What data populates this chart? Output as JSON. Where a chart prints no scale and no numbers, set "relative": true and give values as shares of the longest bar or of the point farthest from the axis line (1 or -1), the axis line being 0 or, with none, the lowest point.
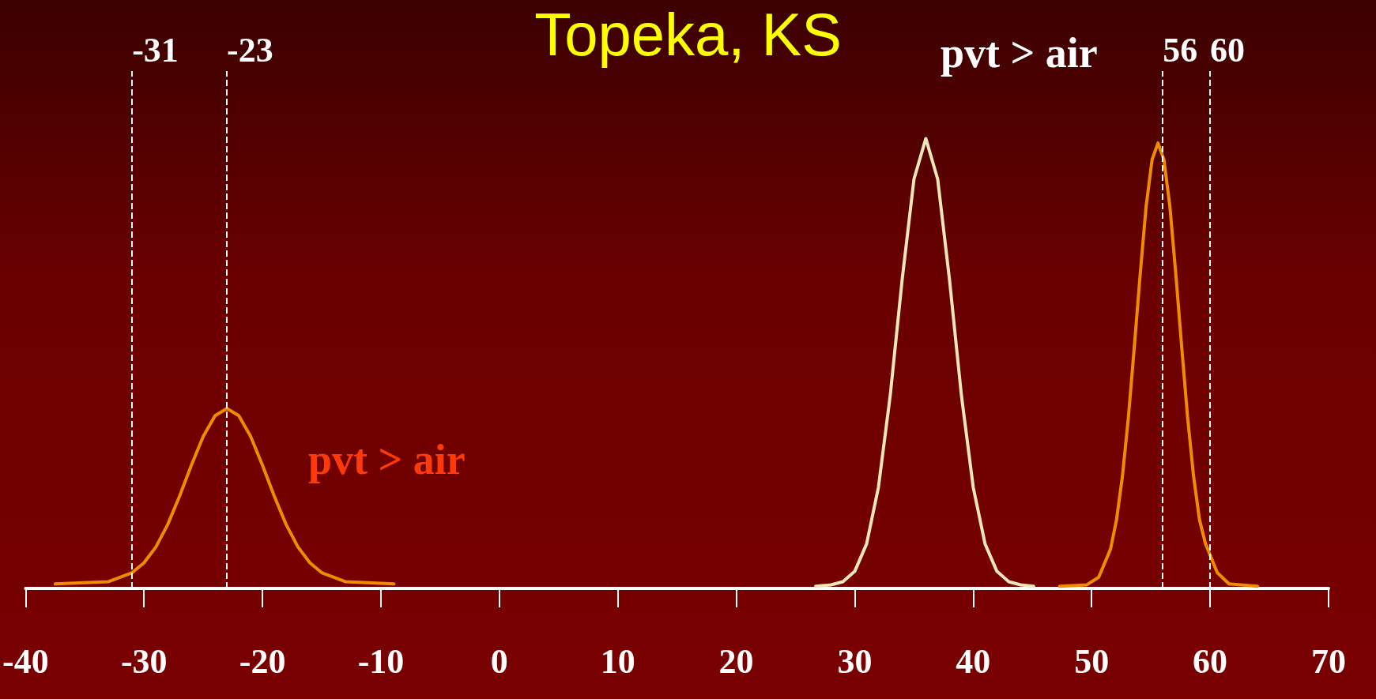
{
  "chart_data": {
    "type": "line",
    "title": "Topeka, KS",
    "relative": true,
    "marker": "none",
    "line_style": "solid",
    "grid": false,
    "xlim": [
      -40,
      70
    ],
    "xticks": [
      -40,
      -30,
      -20,
      -10,
      0,
      10,
      20,
      30,
      40,
      50,
      60,
      70
    ],
    "series": [
      {
        "color": "#f08c00",
        "x": [
          -37.5,
          -33,
          -31,
          -30,
          -29,
          -28,
          -27,
          -26,
          -25,
          -24,
          -23,
          -22,
          -21,
          -20,
          -19,
          -18,
          -17,
          -16,
          -15,
          -13,
          -8.9
        ],
        "values": [
          0.01,
          0.015,
          0.035,
          0.057,
          0.092,
          0.142,
          0.205,
          0.274,
          0.338,
          0.384,
          0.4,
          0.384,
          0.338,
          0.274,
          0.205,
          0.142,
          0.092,
          0.057,
          0.035,
          0.015,
          0.01
        ]
      },
      {
        "color": "#efe6b8",
        "x": [
          26.7,
          28,
          29,
          30,
          31,
          32,
          33,
          34,
          35,
          36,
          37,
          38,
          39,
          40,
          41,
          42,
          43,
          44,
          45.1
        ],
        "values": [
          0.005,
          0.008,
          0.015,
          0.038,
          0.099,
          0.225,
          0.43,
          0.686,
          0.91,
          1,
          0.91,
          0.686,
          0.43,
          0.225,
          0.099,
          0.038,
          0.015,
          0.008,
          0.005
        ]
      },
      {
        "color": "#f08c00",
        "x": [
          47.3,
          49.6,
          50.6,
          51.6,
          52.1,
          52.6,
          53.1,
          53.6,
          54.1,
          54.6,
          55.1,
          55.6,
          56.1,
          56.6,
          57.1,
          57.6,
          58.1,
          58.6,
          59.1,
          59.6,
          60.6,
          61.6,
          64
        ],
        "values": [
          0.005,
          0.008,
          0.025,
          0.088,
          0.153,
          0.25,
          0.38,
          0.537,
          0.7,
          0.85,
          0.953,
          0.99,
          0.953,
          0.85,
          0.7,
          0.537,
          0.38,
          0.25,
          0.153,
          0.1,
          0.035,
          0.01,
          0.005
        ]
      }
    ],
    "ref_lines": [
      {
        "axis": "x",
        "value": -31,
        "label": "-31",
        "color": "#ffffff",
        "line_style": "dashed"
      },
      {
        "axis": "x",
        "value": -23,
        "label": "-23",
        "color": "#ffffff",
        "line_style": "dashed"
      },
      {
        "axis": "x",
        "value": 56,
        "label": "56",
        "color": "#ffffff",
        "line_style": "dashed"
      },
      {
        "axis": "x",
        "value": 60,
        "label": "60",
        "color": "#ffffff",
        "line_style": "dashed"
      }
    ],
    "annotations": [
      "pvt > air",
      "pvt > air"
    ]
  }
}
